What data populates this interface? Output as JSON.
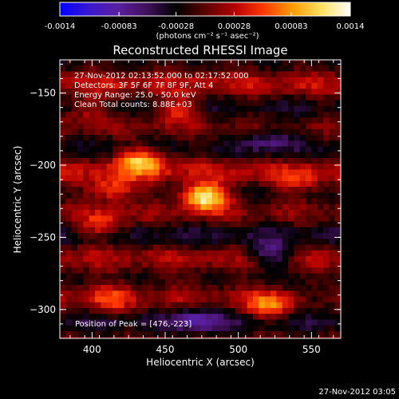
{
  "colorbar": {
    "tick_labels": [
      "-0.0014",
      "-0.00083",
      "-0.00028",
      "0.00028",
      "0.00083",
      "0.0014"
    ],
    "tick_values": [
      -0.0014,
      -0.00083,
      -0.00028,
      0.00028,
      0.00083,
      0.0014
    ],
    "range": [
      -0.0014,
      0.0014
    ],
    "units": "(photons cm⁻² s⁻¹ asec⁻²)",
    "colormap": [
      "#0000ff",
      "#3a18d0",
      "#5a1fa0",
      "#40105a",
      "#000000",
      "#5a0000",
      "#b40000",
      "#ff3800",
      "#ff9a00",
      "#ffe060",
      "#ffffff"
    ]
  },
  "title": "Reconstructed RHESSI Image",
  "info_lines": [
    "27-Nov-2012 02:13:52.000 to 02:17:52.000",
    "Detectors: 3F 5F 6F 7F 8F 9F, Att 4",
    "Energy Range: 25.0 - 50.0 keV",
    "Clean      Total counts: 8.88E+03"
  ],
  "peak_label": "Position of Peak = [476,-223]",
  "footer_timestamp": "27-Nov-2012 03:05",
  "chart_data": {
    "type": "heatmap",
    "xlabel": "Heliocentric X (arcsec)",
    "ylabel": "Heliocentric Y (arcsec)",
    "xlim": [
      378,
      570
    ],
    "ylim": [
      -320,
      -127
    ],
    "xticks": [
      400,
      450,
      500,
      550
    ],
    "yticks": [
      -150,
      -200,
      -250,
      -300
    ],
    "xtick_labels": [
      "400",
      "450",
      "500",
      "550"
    ],
    "ytick_labels": [
      "−150",
      "−200",
      "−250",
      "−300"
    ],
    "peak": {
      "x": 476,
      "y": -223
    },
    "blobs": [
      {
        "x": 475,
        "y": -220,
        "value": 0.0014
      },
      {
        "x": 432,
        "y": -195,
        "value": 0.001
      },
      {
        "x": 412,
        "y": -215,
        "value": 0.0007
      },
      {
        "x": 405,
        "y": -240,
        "value": 0.0006
      },
      {
        "x": 455,
        "y": -160,
        "value": 0.0006
      },
      {
        "x": 395,
        "y": -160,
        "value": 0.0005
      },
      {
        "x": 520,
        "y": -296,
        "value": 0.0007
      },
      {
        "x": 540,
        "y": -210,
        "value": 0.0004
      },
      {
        "x": 410,
        "y": -290,
        "value": 0.0004
      },
      {
        "x": 520,
        "y": -180,
        "value": -0.0005
      },
      {
        "x": 520,
        "y": -260,
        "value": -0.0007
      },
      {
        "x": 470,
        "y": -305,
        "value": -0.0006
      },
      {
        "x": 555,
        "y": -290,
        "value": -0.0004
      }
    ]
  }
}
